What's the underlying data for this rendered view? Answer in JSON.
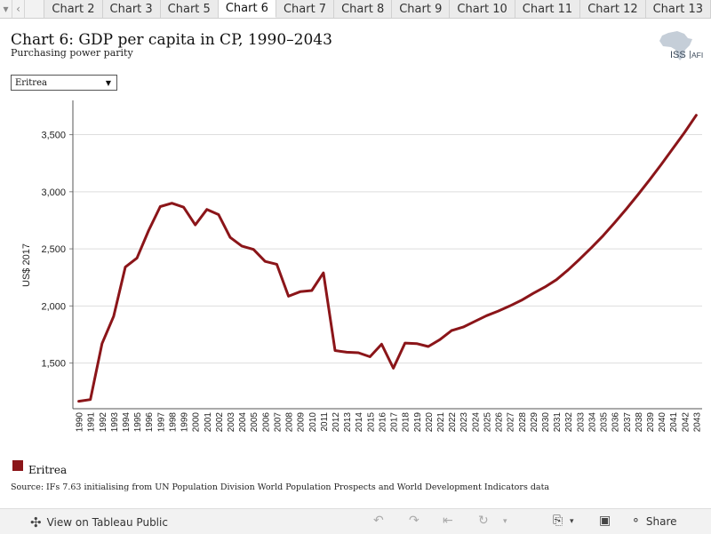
{
  "tabs": {
    "items": [
      "Chart 2",
      "Chart 3",
      "Chart 5",
      "Chart 6",
      "Chart 7",
      "Chart 8",
      "Chart 9",
      "Chart 10",
      "Chart 11",
      "Chart 12",
      "Chart 13"
    ],
    "active": "Chart 6",
    "nav_icons": [
      "chevron-down-icon",
      "chevron-left-icon"
    ]
  },
  "header": {
    "title": "Chart 6: GDP per capita in CP, 1990–2043",
    "subtitle": "Purchasing power parity",
    "logo_text_a": "ISS",
    "logo_text_b": "AFI"
  },
  "filter": {
    "selected": "Eritrea"
  },
  "legend": {
    "label": "Eritrea",
    "color": "#8b1519"
  },
  "source": "Source: IFs 7.63 initialising from UN Population Division World Population Prospects and World Development Indicators data",
  "toolbar": {
    "view_label": "View on Tableau Public",
    "share_label": "Share",
    "icons": [
      "undo-icon",
      "redo-icon",
      "revert-icon",
      "refresh-icon",
      "download-icon",
      "fullscreen-icon",
      "share-icon"
    ]
  },
  "chart_data": {
    "type": "line",
    "title": "Chart 6: GDP per capita in CP, 1990–2043",
    "subtitle": "Purchasing power parity",
    "ylabel": "US$ 2017",
    "xlabel": "",
    "ylim": [
      1100,
      3800
    ],
    "yticks": [
      1500,
      2000,
      2500,
      3000,
      3500
    ],
    "ytick_labels": [
      "1,500",
      "2,000",
      "2,500",
      "3,000",
      "3,500"
    ],
    "grid": "horizontal",
    "legend_position": "bottom-left",
    "series_color": "#8b1519",
    "x": [
      1990,
      1991,
      1992,
      1993,
      1994,
      1995,
      1996,
      1997,
      1998,
      1999,
      2000,
      2001,
      2002,
      2003,
      2004,
      2005,
      2006,
      2007,
      2008,
      2009,
      2010,
      2011,
      2012,
      2013,
      2014,
      2015,
      2016,
      2017,
      2018,
      2019,
      2020,
      2021,
      2022,
      2023,
      2024,
      2025,
      2026,
      2027,
      2028,
      2029,
      2030,
      2031,
      2032,
      2033,
      2034,
      2035,
      2036,
      2037,
      2038,
      2039,
      2040,
      2041,
      2042,
      2043
    ],
    "series": [
      {
        "name": "Eritrea",
        "values": [
          1165,
          1180,
          1670,
          1910,
          2340,
          2420,
          2660,
          2870,
          2900,
          2865,
          2710,
          2845,
          2800,
          2600,
          2525,
          2495,
          2390,
          2365,
          2085,
          2125,
          2135,
          2290,
          1610,
          1595,
          1590,
          1555,
          1665,
          1455,
          1675,
          1670,
          1645,
          1705,
          1785,
          1815,
          1865,
          1915,
          1955,
          2000,
          2050,
          2110,
          2165,
          2230,
          2315,
          2410,
          2510,
          2615,
          2730,
          2850,
          2975,
          3105,
          3240,
          3380,
          3520,
          3670
        ]
      }
    ]
  }
}
